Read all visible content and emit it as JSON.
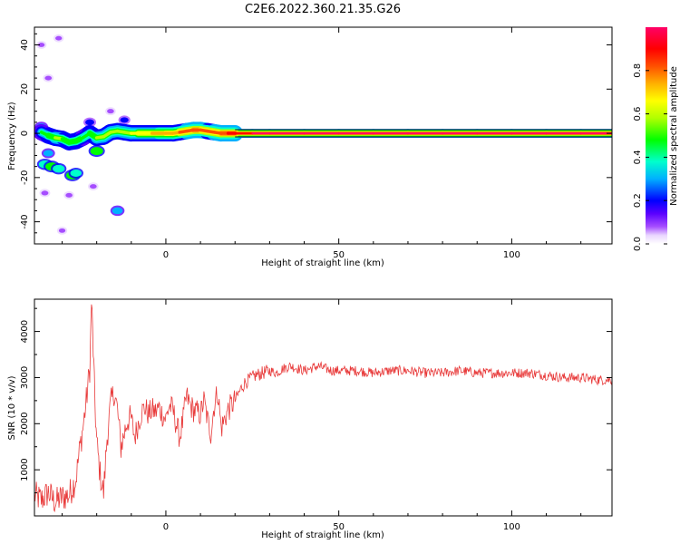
{
  "title": "C2E6.2022.360.21.35.G26",
  "colors": {
    "snr_line": "#e83a3a",
    "colormap": [
      "#ffffff",
      "#e9d5ff",
      "#a64dff",
      "#5a00ff",
      "#0000ff",
      "#00b0ff",
      "#00ffcc",
      "#00ff00",
      "#b0ff00",
      "#ffff00",
      "#ffb000",
      "#ff5000",
      "#ff0000",
      "#ff0066"
    ]
  },
  "chart_data": [
    {
      "type": "heatmap",
      "title": "C2E6.2022.360.21.35.G26",
      "xlabel": "Height of straight line (km)",
      "ylabel": "Frequency (Hz)",
      "xlim": [
        -38,
        129
      ],
      "ylim": [
        -50,
        48
      ],
      "xticks": [
        "0",
        "50",
        "100"
      ],
      "xtick_values": [
        0,
        50,
        100
      ],
      "yticks": [
        "40",
        "20",
        "0",
        "-20",
        "-40"
      ],
      "ytick_values": [
        40,
        20,
        0,
        -20,
        -40
      ],
      "colorbar": {
        "label": "Normalized spectral amplitude",
        "range": [
          0,
          1
        ],
        "ticks": [
          "0.0",
          "0.2",
          "0.4",
          "0.6",
          "0.8"
        ],
        "tick_values": [
          0.0,
          0.2,
          0.4,
          0.6,
          0.8
        ]
      },
      "ridge": [
        {
          "x": -36,
          "y": 0.5,
          "a": 0.5
        },
        {
          "x": -34,
          "y": -1,
          "a": 0.55
        },
        {
          "x": -32,
          "y": -2,
          "a": 0.6
        },
        {
          "x": -30,
          "y": -2.5,
          "a": 0.6
        },
        {
          "x": -28,
          "y": -4,
          "a": 0.55
        },
        {
          "x": -26,
          "y": -3.5,
          "a": 0.6
        },
        {
          "x": -24,
          "y": -2,
          "a": 0.55
        },
        {
          "x": -22,
          "y": 0,
          "a": 0.55
        },
        {
          "x": -20,
          "y": -2,
          "a": 0.6
        },
        {
          "x": -18,
          "y": -1.5,
          "a": 0.6
        },
        {
          "x": -16,
          "y": 0.5,
          "a": 0.6
        },
        {
          "x": -14,
          "y": 1,
          "a": 0.6
        },
        {
          "x": -12,
          "y": 0.5,
          "a": 0.65
        },
        {
          "x": -10,
          "y": 0,
          "a": 0.65
        },
        {
          "x": -8,
          "y": 0,
          "a": 0.7
        },
        {
          "x": -6,
          "y": 0,
          "a": 0.7
        },
        {
          "x": -4,
          "y": 0,
          "a": 0.75
        },
        {
          "x": -2,
          "y": 0,
          "a": 0.75
        },
        {
          "x": 0,
          "y": 0,
          "a": 0.8
        },
        {
          "x": 2,
          "y": 0,
          "a": 0.8
        },
        {
          "x": 4,
          "y": 0.5,
          "a": 0.82
        },
        {
          "x": 6,
          "y": 1,
          "a": 0.85
        },
        {
          "x": 8,
          "y": 1.5,
          "a": 0.88
        },
        {
          "x": 10,
          "y": 1.5,
          "a": 0.88
        },
        {
          "x": 12,
          "y": 1,
          "a": 0.85
        },
        {
          "x": 14,
          "y": 0.5,
          "a": 0.85
        },
        {
          "x": 16,
          "y": 0,
          "a": 0.88
        },
        {
          "x": 18,
          "y": 0,
          "a": 0.9
        },
        {
          "x": 20,
          "y": 0,
          "a": 0.95
        },
        {
          "x": 25,
          "y": 0,
          "a": 1
        },
        {
          "x": 30,
          "y": 0,
          "a": 1
        },
        {
          "x": 40,
          "y": 0,
          "a": 1
        },
        {
          "x": 50,
          "y": 0,
          "a": 1
        },
        {
          "x": 60,
          "y": 0,
          "a": 1
        },
        {
          "x": 70,
          "y": 0,
          "a": 1
        },
        {
          "x": 80,
          "y": 0,
          "a": 1
        },
        {
          "x": 90,
          "y": 0,
          "a": 1
        },
        {
          "x": 100,
          "y": 0,
          "a": 1
        },
        {
          "x": 110,
          "y": 0,
          "a": 1
        },
        {
          "x": 120,
          "y": 0,
          "a": 1
        },
        {
          "x": 129,
          "y": 0,
          "a": 1
        }
      ],
      "blobs": [
        {
          "x": -35,
          "y": -14,
          "a": 0.45
        },
        {
          "x": -33,
          "y": -15,
          "a": 0.5
        },
        {
          "x": -31,
          "y": -16,
          "a": 0.45
        },
        {
          "x": -27,
          "y": -19,
          "a": 0.5
        },
        {
          "x": -26,
          "y": -18,
          "a": 0.4
        },
        {
          "x": -20,
          "y": -8,
          "a": 0.5
        },
        {
          "x": -34,
          "y": -9,
          "a": 0.3
        },
        {
          "x": -14,
          "y": -35,
          "a": 0.35
        },
        {
          "x": -36,
          "y": 3,
          "a": 0.3
        },
        {
          "x": -22,
          "y": 5,
          "a": 0.25
        },
        {
          "x": -34,
          "y": 25,
          "a": 0.1
        },
        {
          "x": -36,
          "y": 40,
          "a": 0.08
        },
        {
          "x": -31,
          "y": 43,
          "a": 0.08
        },
        {
          "x": -35,
          "y": -27,
          "a": 0.12
        },
        {
          "x": -28,
          "y": -28,
          "a": 0.1
        },
        {
          "x": -21,
          "y": -24,
          "a": 0.1
        },
        {
          "x": -30,
          "y": -44,
          "a": 0.08
        },
        {
          "x": -16,
          "y": 10,
          "a": 0.1
        },
        {
          "x": -12,
          "y": 6,
          "a": 0.2
        }
      ]
    },
    {
      "type": "line",
      "xlabel": "Height of straight line (km)",
      "ylabel": "SNR (10 * v/v)",
      "xlim": [
        -38,
        129
      ],
      "ylim": [
        0,
        4700
      ],
      "xticks": [
        "0",
        "50",
        "100"
      ],
      "xtick_values": [
        0,
        50,
        100
      ],
      "yticks": [
        "1000",
        "2000",
        "3000",
        "4000"
      ],
      "ytick_values": [
        1000,
        2000,
        3000,
        4000
      ],
      "x": [
        -38,
        -36,
        -34,
        -32,
        -30,
        -28,
        -26,
        -25,
        -24,
        -23,
        -22,
        -21.5,
        -21,
        -20.5,
        -20,
        -19,
        -18,
        -17,
        -16,
        -15,
        -14,
        -13,
        -12,
        -11,
        -10,
        -9,
        -8,
        -7,
        -6,
        -5,
        -4,
        -3,
        -2,
        -1,
        0,
        1,
        2,
        3,
        4,
        5,
        6,
        7,
        8,
        9,
        10,
        11,
        12,
        13,
        14,
        15,
        16,
        17,
        18,
        19,
        20,
        21,
        22,
        23,
        24,
        25,
        26,
        28,
        30,
        32,
        34,
        36,
        38,
        40,
        42,
        44,
        46,
        48,
        50,
        55,
        60,
        65,
        70,
        75,
        80,
        85,
        90,
        95,
        100,
        105,
        110,
        115,
        120,
        125,
        129
      ],
      "y": [
        450,
        350,
        500,
        300,
        400,
        450,
        800,
        1400,
        1900,
        2500,
        3200,
        4650,
        3600,
        2400,
        1600,
        900,
        500,
        1700,
        2400,
        2700,
        2300,
        1500,
        1800,
        2100,
        2100,
        1700,
        2000,
        2250,
        2350,
        2200,
        2300,
        2250,
        2350,
        2200,
        2100,
        2400,
        2300,
        2000,
        1700,
        2100,
        2600,
        2400,
        2300,
        2250,
        2200,
        2500,
        2100,
        1800,
        2400,
        2700,
        1900,
        2100,
        2300,
        2400,
        2500,
        2650,
        2800,
        2900,
        2950,
        3000,
        3050,
        3100,
        3150,
        3100,
        3200,
        3250,
        3200,
        3150,
        3200,
        3250,
        3200,
        3150,
        3150,
        3150,
        3100,
        3150,
        3150,
        3100,
        3100,
        3150,
        3100,
        3100,
        3100,
        3100,
        3050,
        3000,
        3000,
        2950,
        2950
      ]
    }
  ]
}
